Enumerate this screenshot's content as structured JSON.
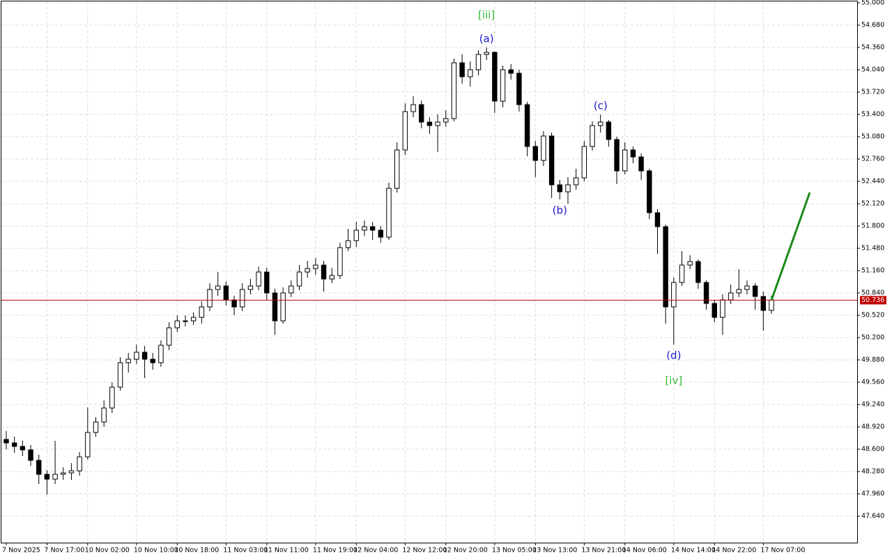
{
  "chart_data": {
    "type": "candlestick",
    "categories": [
      "7 Nov 2025",
      null,
      null,
      null,
      null,
      "7 Nov 17:00",
      null,
      null,
      null,
      null,
      "10 Nov 02:00",
      null,
      null,
      null,
      null,
      null,
      "10 Nov 10:00",
      null,
      null,
      null,
      null,
      "10 Nov 18:00",
      null,
      null,
      null,
      null,
      null,
      "11 Nov 03:00",
      null,
      null,
      null,
      null,
      "11 Nov 11:00",
      null,
      null,
      null,
      null,
      null,
      "11 Nov 19:00",
      null,
      null,
      null,
      null,
      "12 Nov 04:00",
      null,
      null,
      null,
      null,
      null,
      "12 Nov 12:00",
      null,
      null,
      null,
      null,
      "12 Nov 20:00",
      null,
      null,
      null,
      null,
      null,
      "13 Nov 05:00",
      null,
      null,
      null,
      null,
      "13 Nov 13:00",
      null,
      null,
      null,
      null,
      null,
      "13 Nov 21:00",
      null,
      null,
      null,
      null,
      "14 Nov 06:00",
      null,
      null,
      null,
      null,
      null,
      "14 Nov 14:00",
      null,
      null,
      null,
      null,
      "14 Nov 22:00",
      null,
      null,
      null,
      null,
      null,
      "17 Nov 07:00",
      null
    ],
    "open": [
      48.74,
      48.69,
      48.64,
      48.59,
      48.44,
      48.24,
      48.17,
      48.24,
      48.26,
      48.29,
      48.49,
      48.84,
      48.99,
      49.19,
      49.49,
      49.84,
      49.89,
      49.99,
      49.89,
      49.84,
      50.09,
      50.34,
      50.44,
      50.44,
      50.49,
      50.64,
      50.89,
      50.94,
      50.74,
      50.64,
      50.89,
      50.94,
      51.14,
      50.84,
      50.44,
      50.84,
      50.94,
      51.14,
      51.19,
      51.24,
      51.04,
      51.09,
      51.49,
      51.59,
      51.74,
      51.79,
      51.74,
      51.64,
      52.34,
      52.89,
      53.44,
      53.54,
      53.29,
      53.24,
      53.29,
      53.34,
      54.14,
      53.94,
      54.04,
      54.26,
      54.29,
      53.59,
      54.04,
      53.99,
      53.54,
      52.94,
      52.74,
      53.09,
      52.39,
      52.29,
      52.39,
      52.49,
      52.94,
      53.24,
      53.29,
      53.04,
      52.59,
      52.89,
      52.79,
      52.59,
      51.99,
      51.79,
      50.64,
      50.99,
      51.24,
      51.29,
      50.99,
      50.69,
      50.49,
      50.74,
      50.84,
      50.89,
      50.94,
      50.79,
      50.59
    ],
    "high": [
      48.86,
      48.78,
      48.72,
      48.66,
      48.52,
      48.3,
      48.72,
      48.34,
      48.4,
      48.56,
      49.2,
      49.06,
      49.3,
      49.56,
      49.92,
      49.98,
      50.1,
      50.08,
      49.98,
      50.16,
      50.42,
      50.52,
      50.52,
      50.56,
      50.72,
      50.98,
      51.14,
      51.0,
      50.8,
      50.98,
      51.04,
      51.22,
      51.2,
      50.9,
      50.92,
      51.02,
      51.24,
      51.3,
      51.34,
      51.3,
      51.2,
      51.56,
      51.76,
      51.86,
      51.88,
      51.86,
      51.8,
      52.42,
      53.0,
      53.56,
      53.66,
      53.6,
      53.36,
      53.4,
      53.46,
      54.2,
      54.26,
      54.16,
      54.32,
      54.36,
      54.3,
      54.1,
      54.12,
      54.04,
      53.58,
      53.02,
      53.16,
      53.14,
      52.46,
      52.5,
      52.62,
      53.02,
      53.3,
      53.4,
      53.32,
      53.08,
      53.0,
      52.94,
      52.84,
      52.62,
      52.04,
      51.82,
      51.06,
      51.44,
      51.38,
      51.32,
      51.02,
      50.74,
      50.82,
      50.96,
      51.18,
      51.02,
      50.98,
      50.86,
      50.8
    ],
    "low": [
      48.6,
      48.55,
      48.5,
      48.36,
      48.1,
      47.95,
      48.1,
      48.16,
      48.16,
      48.22,
      48.45,
      48.78,
      48.92,
      49.12,
      49.44,
      49.7,
      49.82,
      49.62,
      49.74,
      49.78,
      50.02,
      50.28,
      50.36,
      50.38,
      50.4,
      50.58,
      50.8,
      50.66,
      50.52,
      50.58,
      50.82,
      50.88,
      50.74,
      50.24,
      50.4,
      50.78,
      50.88,
      51.06,
      51.1,
      50.86,
      50.98,
      51.04,
      51.44,
      51.5,
      51.66,
      51.6,
      51.56,
      51.6,
      52.28,
      52.82,
      53.36,
      53.2,
      53.12,
      52.86,
      53.22,
      53.3,
      53.84,
      53.8,
      53.96,
      54.18,
      53.42,
      53.5,
      53.9,
      53.44,
      52.8,
      52.5,
      52.66,
      52.2,
      52.18,
      52.12,
      52.32,
      52.44,
      52.88,
      53.14,
      52.94,
      52.4,
      52.54,
      52.7,
      52.46,
      51.9,
      51.4,
      50.4,
      50.1,
      50.94,
      51.18,
      50.9,
      50.6,
      50.42,
      50.24,
      50.68,
      50.78,
      50.82,
      50.6,
      50.3,
      50.54
    ],
    "close": [
      48.69,
      48.64,
      48.59,
      48.44,
      48.24,
      48.17,
      48.24,
      48.26,
      48.29,
      48.49,
      48.84,
      48.99,
      49.19,
      49.49,
      49.84,
      49.89,
      49.99,
      49.89,
      49.84,
      50.09,
      50.34,
      50.44,
      50.44,
      50.49,
      50.64,
      50.89,
      50.94,
      50.74,
      50.64,
      50.89,
      50.94,
      51.14,
      50.84,
      50.44,
      50.84,
      50.94,
      51.14,
      51.19,
      51.24,
      51.04,
      51.09,
      51.49,
      51.59,
      51.74,
      51.79,
      51.74,
      51.64,
      52.34,
      52.89,
      53.44,
      53.54,
      53.29,
      53.24,
      53.29,
      53.34,
      54.14,
      53.94,
      54.04,
      54.26,
      54.29,
      53.59,
      54.04,
      53.99,
      53.54,
      52.94,
      52.74,
      53.09,
      52.39,
      52.29,
      52.39,
      52.49,
      52.94,
      53.24,
      53.29,
      53.04,
      52.59,
      52.89,
      52.79,
      52.59,
      51.99,
      51.79,
      50.64,
      50.99,
      51.24,
      51.29,
      50.99,
      50.69,
      50.49,
      50.74,
      50.84,
      50.89,
      50.94,
      50.79,
      50.59,
      50.74
    ],
    "up_color": "#ffffff",
    "down_color": "#000000",
    "ylim": [
      47.26,
      55.0
    ],
    "yticks": [
      {
        "value": 55.0,
        "label": "55.000"
      },
      {
        "value": 54.68,
        "label": "54.680"
      },
      {
        "value": 54.36,
        "label": "54.360"
      },
      {
        "value": 54.04,
        "label": "54.040"
      },
      {
        "value": 53.72,
        "label": "53.720"
      },
      {
        "value": 53.4,
        "label": "53.400"
      },
      {
        "value": 53.08,
        "label": "53.080"
      },
      {
        "value": 52.76,
        "label": "52.760"
      },
      {
        "value": 52.44,
        "label": "52.440"
      },
      {
        "value": 52.12,
        "label": "52.120"
      },
      {
        "value": 51.8,
        "label": "51.800"
      },
      {
        "value": 51.48,
        "label": "51.480"
      },
      {
        "value": 51.16,
        "label": "51.160"
      },
      {
        "value": 50.84,
        "label": "50.840"
      },
      {
        "value": 50.52,
        "label": "50.520"
      },
      {
        "value": 50.2,
        "label": "50.200"
      },
      {
        "value": 49.88,
        "label": "49.880"
      },
      {
        "value": 49.56,
        "label": "49.560"
      },
      {
        "value": 49.24,
        "label": "49.240"
      },
      {
        "value": 48.92,
        "label": "48.920"
      },
      {
        "value": 48.6,
        "label": "48.600"
      },
      {
        "value": 48.28,
        "label": "48.280"
      },
      {
        "value": 47.96,
        "label": "47.960"
      },
      {
        "value": 47.64,
        "label": "47.640"
      }
    ],
    "grid": true,
    "price_line": {
      "value": 50.736,
      "color": "#c00000"
    },
    "forecast": {
      "color": "#1a8a1a",
      "values": [
        50.736,
        52.28
      ]
    },
    "annotations": [
      {
        "text": "[iii]",
        "color": "#33bb33"
      },
      {
        "text": "(a)",
        "color": "#1a1acc"
      },
      {
        "text": "(b)",
        "color": "#1a1acc"
      },
      {
        "text": "(c)",
        "color": "#1a1acc"
      },
      {
        "text": "(d)",
        "color": "#1a1acc"
      },
      {
        "text": "[iv]",
        "color": "#33bb33"
      }
    ]
  }
}
